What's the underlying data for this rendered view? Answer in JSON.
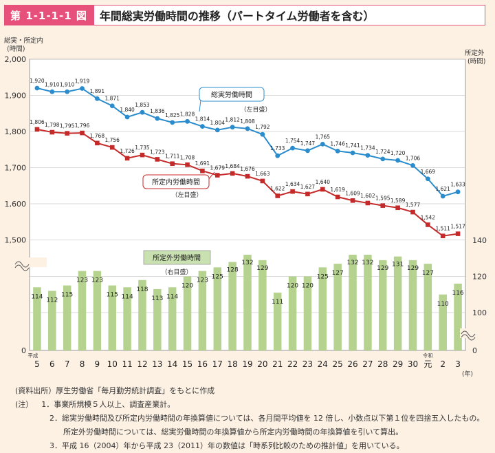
{
  "header": {
    "fig_label": "第 1-1-1-1 図",
    "title": "年間総実労働時間の推移（パートタイム労働者を含む）"
  },
  "chart_data": {
    "type": "line+bar",
    "title": "年間総実労働時間の推移（パートタイム労働者を含む）",
    "left_axis_label": [
      "総実・所定内",
      "(時間)"
    ],
    "right_axis_label": [
      "所定外",
      "(時間)"
    ],
    "x_axis_unit": "(年)",
    "era_labels": {
      "heisei": "平成",
      "reiwa": "令和"
    },
    "categories": [
      "5",
      "6",
      "7",
      "8",
      "9",
      "10",
      "11",
      "12",
      "13",
      "14",
      "15",
      "16",
      "17",
      "18",
      "19",
      "20",
      "21",
      "22",
      "23",
      "24",
      "25",
      "26",
      "27",
      "28",
      "29",
      "30",
      "元",
      "2",
      "3"
    ],
    "left_ticks": [
      "2,000",
      "1,900",
      "1,800",
      "1,700",
      "1,600",
      "1,500",
      "0"
    ],
    "right_ticks": [
      "140",
      "120",
      "100",
      "0"
    ],
    "left_ylim": [
      1500,
      2000
    ],
    "right_ylim": [
      90,
      140
    ],
    "series": [
      {
        "name": "総実労働時間",
        "axis_note": "（左目盛）",
        "color": "#2a8ccc",
        "values": [
          1920,
          1910,
          1910,
          1919,
          1891,
          1871,
          1840,
          1853,
          1836,
          1825,
          1828,
          1814,
          1804,
          1812,
          1808,
          1792,
          1733,
          1754,
          1747,
          1765,
          1746,
          1741,
          1734,
          1724,
          1720,
          1706,
          1669,
          1621,
          1633
        ],
        "labels": [
          "1,920",
          "1,910",
          "1,910",
          "1,919",
          "1,891",
          "1,871",
          "1,840",
          "1,853",
          "1,836",
          "1,825",
          "1,828",
          "1,814",
          "1,804",
          "1,812",
          "1,808",
          "1,792",
          "1,733",
          "1,754",
          "1,747",
          "1,765",
          "1,746",
          "1,741",
          "1,734",
          "1,724",
          "1,720",
          "1,706",
          "1,669",
          "1,621",
          "1,633"
        ]
      },
      {
        "name": "所定内労働時間",
        "axis_note": "（左目盛）",
        "color": "#c42a2a",
        "values": [
          1806,
          1798,
          1795,
          1796,
          1768,
          1756,
          1726,
          1735,
          1723,
          1711,
          1708,
          1691,
          1679,
          1684,
          1676,
          1663,
          1622,
          1634,
          1627,
          1640,
          1619,
          1609,
          1602,
          1595,
          1589,
          1577,
          1542,
          1511,
          1517
        ],
        "labels": [
          "1,806",
          "1,798",
          "1,795",
          "1,796",
          "1,768",
          "1,756",
          "1,726",
          "1,735",
          "1,723",
          "1,711",
          "1,708",
          "1,691",
          "1,679",
          "1,684",
          "1,676",
          "1,663",
          "1,622",
          "1,634",
          "1,627",
          "1,640",
          "1,619",
          "1,609",
          "1,602",
          "1,595",
          "1,589",
          "1,577",
          "1,542",
          "1,511",
          "1,517"
        ]
      },
      {
        "name": "所定外労働時間",
        "axis_note": "（右目盛）",
        "color": "#b5d38f",
        "values": [
          114,
          112,
          115,
          123,
          123,
          115,
          114,
          118,
          113,
          114,
          120,
          123,
          125,
          128,
          132,
          129,
          111,
          120,
          120,
          125,
          127,
          132,
          132,
          129,
          131,
          129,
          127,
          110,
          116
        ]
      }
    ],
    "colors": {
      "blue": "#2a8ccc",
      "red": "#c42a2a",
      "bar": "#b5d38f",
      "label_box_green": "#c9e0b0"
    }
  },
  "notes": {
    "source": "(資料出所）厚生労働省「毎月勤労統計調査」をもとに作成",
    "note_head": "(注）",
    "note1": "1．事業所規模５人以上、調査産業計。",
    "note2a": "2．総実労働時間及び所定内労働時間の年換算値については、各月間平均値を 12 倍し、小数点以下第１位を四捨五入したもの。",
    "note2b": "所定外労働時間については、総実労働時間の年換算値から所定内労働時間の年換算値を引いて算出。",
    "note3": "3．平成 16（2004）年から平成 23（2011）年の数値は「時系列比較のための推計値」を用いている。"
  }
}
